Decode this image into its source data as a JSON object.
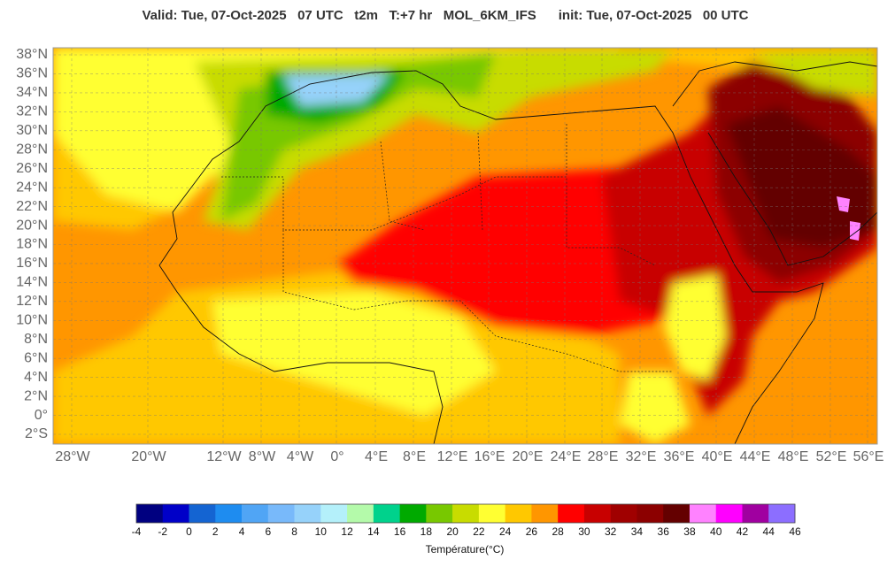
{
  "header": {
    "title": "Valid: Tue, 07-Oct-2025   07 UTC   t2m   T:+7 hr   MOL_6KM_IFS      init: Tue, 07-Oct-2025   00 UTC"
  },
  "map": {
    "lat_labels": [
      "38°N",
      "36°N",
      "34°N",
      "32°N",
      "30°N",
      "28°N",
      "26°N",
      "24°N",
      "22°N",
      "20°N",
      "18°N",
      "16°N",
      "14°N",
      "12°N",
      "10°N",
      "8°N",
      "6°N",
      "4°N",
      "2°N",
      "0°",
      "2°S"
    ],
    "lon_labels": [
      "28°W",
      "20°W",
      "12°W",
      "8°W",
      "4°W",
      "0°",
      "4°E",
      "8°E",
      "12°E",
      "16°E",
      "20°E",
      "24°E",
      "28°E",
      "32°E",
      "36°E",
      "40°E",
      "44°E",
      "48°E",
      "52°E",
      "56°E"
    ]
  },
  "colorbar": {
    "label": "Température(°C)",
    "ticks": [
      -4,
      -2,
      0,
      2,
      4,
      6,
      8,
      10,
      12,
      14,
      16,
      18,
      20,
      22,
      24,
      26,
      28,
      30,
      32,
      34,
      36,
      38,
      40,
      42,
      44,
      46
    ],
    "colors": [
      "#000080",
      "#0000c8",
      "#1464d2",
      "#1e8cf0",
      "#50a5f5",
      "#78b9fa",
      "#96d2fa",
      "#b4f0fa",
      "#b4faaa",
      "#00d28c",
      "#00aa00",
      "#78c800",
      "#c8dc00",
      "#ffff32",
      "#ffc800",
      "#ff9600",
      "#ff0000",
      "#c80000",
      "#a00000",
      "#8c0000",
      "#640000",
      "#ff82ff",
      "#ff00ff",
      "#a000a0",
      "#8c6eff"
    ]
  }
}
